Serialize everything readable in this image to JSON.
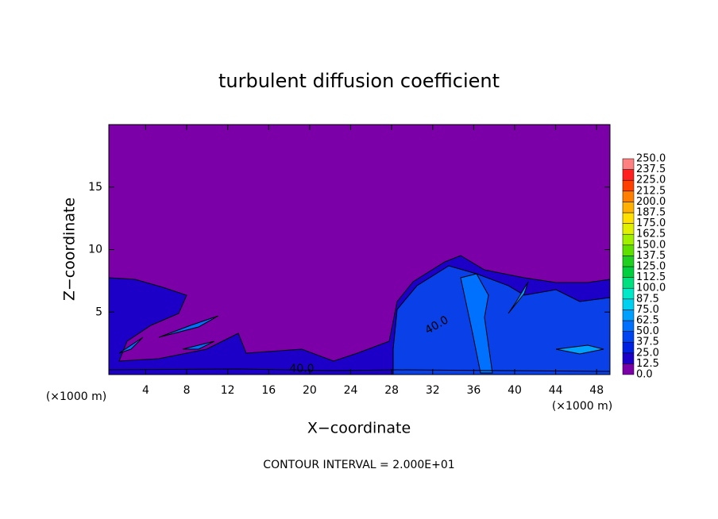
{
  "chart_data": {
    "type": "contour",
    "title": "turbulent diffusion coefficient",
    "xlabel": "X−coordinate",
    "ylabel": "Z−coordinate",
    "x_unit": "(×1000 m)",
    "xlim": [
      0.4,
      49.3
    ],
    "xticks": [
      4,
      8,
      12,
      16,
      20,
      24,
      28,
      32,
      36,
      40,
      44,
      48
    ],
    "ylim": [
      0,
      20
    ],
    "yticks": [
      5,
      10,
      15
    ],
    "colorbar": {
      "levels": [
        {
          "value": 0,
          "label": "0.0"
        },
        {
          "value": 12.5,
          "label": "12.5"
        },
        {
          "value": 25,
          "label": "25.0"
        },
        {
          "value": 37.5,
          "label": "37.5"
        },
        {
          "value": 50,
          "label": "50.0"
        },
        {
          "value": 62.5,
          "label": "62.5"
        },
        {
          "value": 75,
          "label": "75.0"
        },
        {
          "value": 87.5,
          "label": "87.5"
        },
        {
          "value": 100,
          "label": "100.0"
        },
        {
          "value": 112.5,
          "label": "112.5"
        },
        {
          "value": 125,
          "label": "125.0"
        },
        {
          "value": 137.5,
          "label": "137.5"
        },
        {
          "value": 150,
          "label": "150.0"
        },
        {
          "value": 162.5,
          "label": "162.5"
        },
        {
          "value": 175,
          "label": "175.0"
        },
        {
          "value": 187.5,
          "label": "187.5"
        },
        {
          "value": 200,
          "label": "200.0"
        },
        {
          "value": 212.5,
          "label": "212.5"
        },
        {
          "value": 225,
          "label": "225.0"
        },
        {
          "value": 237.5,
          "label": "237.5"
        },
        {
          "value": 250,
          "label": "250.0"
        }
      ],
      "colors": [
        "#7b00a8",
        "#1c00c8",
        "#0022e0",
        "#0044f0",
        "#0070ff",
        "#00a0ff",
        "#00d0f0",
        "#00e8c8",
        "#00e080",
        "#00d040",
        "#20d020",
        "#60e000",
        "#a0f000",
        "#e0f000",
        "#ffe000",
        "#ffb000",
        "#ff8000",
        "#ff4000",
        "#ff2020",
        "#ff8080"
      ]
    },
    "contour_labels": [
      "40.0",
      "40.0"
    ],
    "footnote": "CONTOUR INTERVAL = 2.000E+01"
  }
}
